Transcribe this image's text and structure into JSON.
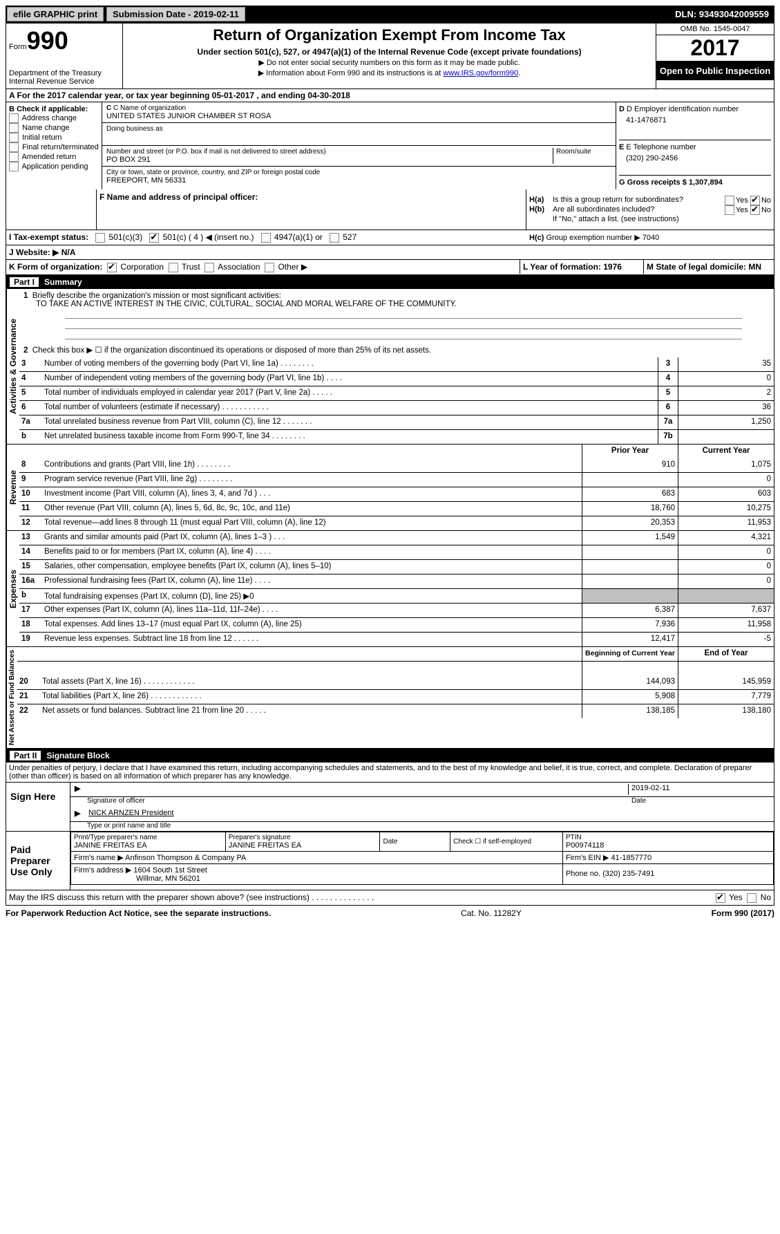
{
  "topbar": {
    "efile": "efile GRAPHIC print",
    "submission_label": "Submission Date - 2019-02-11",
    "dln": "DLN: 93493042009559"
  },
  "header": {
    "form_label": "Form",
    "form_number": "990",
    "dept1": "Department of the Treasury",
    "dept2": "Internal Revenue Service",
    "title": "Return of Organization Exempt From Income Tax",
    "subtitle": "Under section 501(c), 527, or 4947(a)(1) of the Internal Revenue Code (except private foundations)",
    "note1": "▶ Do not enter social security numbers on this form as it may be made public.",
    "note2_pre": "▶ Information about Form 990 and its instructions is at ",
    "note2_link": "www.IRS.gov/form990",
    "omb": "OMB No. 1545-0047",
    "year": "2017",
    "inspection": "Open to Public Inspection"
  },
  "sectionA": "A  For the 2017 calendar year, or tax year beginning 05-01-2017   , and ending 04-30-2018",
  "boxB": {
    "label": "B Check if applicable:",
    "opts": [
      "Address change",
      "Name change",
      "Initial return",
      "Final return/terminated",
      "Amended return",
      "Application pending"
    ]
  },
  "boxC": {
    "name_label": "C Name of organization",
    "name": "UNITED STATES JUNIOR CHAMBER ST ROSA",
    "dba_label": "Doing business as",
    "street_label": "Number and street (or P.O. box if mail is not delivered to street address)",
    "room_label": "Room/suite",
    "street": "PO BOX 291",
    "city_label": "City or town, state or province, country, and ZIP or foreign postal code",
    "city": "FREEPORT, MN  56331"
  },
  "boxD": {
    "label": "D Employer identification number",
    "value": "41-1476871"
  },
  "boxE": {
    "label": "E Telephone number",
    "value": "(320) 290-2456"
  },
  "boxG": {
    "label": "G Gross receipts $ 1,307,894"
  },
  "boxF": "F Name and address of principal officer:",
  "boxH": {
    "a": "Is this a group return for subordinates?",
    "b": "Are all subordinates included?",
    "b_note": "If \"No,\" attach a list. (see instructions)",
    "c": "Group exemption number ▶   7040",
    "yes": "Yes",
    "no": "No"
  },
  "rowI": {
    "label": "I  Tax-exempt status:",
    "o1": "501(c)(3)",
    "o2": "501(c) ( 4 ) ◀ (insert no.)",
    "o3": "4947(a)(1) or",
    "o4": "527"
  },
  "rowJ": "J  Website: ▶  N/A",
  "rowK": {
    "label": "K Form of organization:",
    "o1": "Corporation",
    "o2": "Trust",
    "o3": "Association",
    "o4": "Other ▶"
  },
  "rowL": "L Year of formation: 1976",
  "rowM": "M State of legal domicile: MN",
  "part1": {
    "num": "Part I",
    "title": "Summary"
  },
  "governance": {
    "side": "Activities & Governance",
    "l1_label": "Briefly describe the organization's mission or most significant activities:",
    "l1_text": "TO TAKE AN ACTIVE INTEREST IN THE CIVIC, CULTURAL, SOCIAL AND MORAL WELFARE OF THE COMMUNITY.",
    "l2": "Check this box ▶ ☐  if the organization discontinued its operations or disposed of more than 25% of its net assets.",
    "rows": [
      {
        "n": "3",
        "label": "Number of voting members of the governing body (Part VI, line 1a)   .    .    .    .    .    .    .    .",
        "box": "3",
        "val": "35"
      },
      {
        "n": "4",
        "label": "Number of independent voting members of the governing body (Part VI, line 1b)    .    .    .    .",
        "box": "4",
        "val": "0"
      },
      {
        "n": "5",
        "label": "Total number of individuals employed in calendar year 2017 (Part V, line 2a)    .    .    .    .    .",
        "box": "5",
        "val": "2"
      },
      {
        "n": "6",
        "label": "Total number of volunteers (estimate if necessary)   .    .    .    .    .    .    .    .    .    .    .",
        "box": "6",
        "val": "36"
      },
      {
        "n": "7a",
        "label": "Total unrelated business revenue from Part VIII, column (C), line 12   .    .    .    .    .    .    .",
        "box": "7a",
        "val": "1,250"
      },
      {
        "n": "b",
        "label": "Net unrelated business taxable income from Form 990-T, line 34   .    .    .    .    .    .    .    .",
        "box": "7b",
        "val": ""
      }
    ]
  },
  "revenue": {
    "side": "Revenue",
    "header_prior": "Prior Year",
    "header_curr": "Current Year",
    "rows": [
      {
        "n": "8",
        "label": "Contributions and grants (Part VIII, line 1h)   .    .    .    .    .    .    .    .",
        "p": "910",
        "c": "1,075"
      },
      {
        "n": "9",
        "label": "Program service revenue (Part VIII, line 2g)   .    .    .    .    .    .    .    .",
        "p": "",
        "c": "0"
      },
      {
        "n": "10",
        "label": "Investment income (Part VIII, column (A), lines 3, 4, and 7d )   .    .    .",
        "p": "683",
        "c": "603"
      },
      {
        "n": "11",
        "label": "Other revenue (Part VIII, column (A), lines 5, 6d, 8c, 9c, 10c, and 11e)",
        "p": "18,760",
        "c": "10,275"
      },
      {
        "n": "12",
        "label": "Total revenue—add lines 8 through 11 (must equal Part VIII, column (A), line 12)",
        "p": "20,353",
        "c": "11,953"
      }
    ]
  },
  "expenses": {
    "side": "Expenses",
    "rows": [
      {
        "n": "13",
        "label": "Grants and similar amounts paid (Part IX, column (A), lines 1–3 )   .    .    .",
        "p": "1,549",
        "c": "4,321"
      },
      {
        "n": "14",
        "label": "Benefits paid to or for members (Part IX, column (A), line 4)   .    .    .    .",
        "p": "",
        "c": "0"
      },
      {
        "n": "15",
        "label": "Salaries, other compensation, employee benefits (Part IX, column (A), lines 5–10)",
        "p": "",
        "c": "0"
      },
      {
        "n": "16a",
        "label": "Professional fundraising fees (Part IX, column (A), line 11e)   .    .    .    .",
        "p": "",
        "c": "0"
      },
      {
        "n": "b",
        "label": "Total fundraising expenses (Part IX, column (D), line 25) ▶0",
        "p": "grey",
        "c": "grey"
      },
      {
        "n": "17",
        "label": "Other expenses (Part IX, column (A), lines 11a–11d, 11f–24e)   .    .    .    .",
        "p": "6,387",
        "c": "7,637"
      },
      {
        "n": "18",
        "label": "Total expenses. Add lines 13–17 (must equal Part IX, column (A), line 25)",
        "p": "7,936",
        "c": "11,958"
      },
      {
        "n": "19",
        "label": "Revenue less expenses. Subtract line 18 from line 12   .    .    .    .    .    .",
        "p": "12,417",
        "c": "-5"
      }
    ]
  },
  "netassets": {
    "side": "Net Assets or Fund Balances",
    "header_prior": "Beginning of Current Year",
    "header_curr": "End of Year",
    "rows": [
      {
        "n": "20",
        "label": "Total assets (Part X, line 16)   .    .    .    .    .    .    .    .    .    .    .    .",
        "p": "144,093",
        "c": "145,959"
      },
      {
        "n": "21",
        "label": "Total liabilities (Part X, line 26)   .    .    .    .    .    .    .    .    .    .    .    .",
        "p": "5,908",
        "c": "7,779"
      },
      {
        "n": "22",
        "label": "Net assets or fund balances. Subtract line 21 from line 20 .    .    .    .    .",
        "p": "138,185",
        "c": "138,180"
      }
    ]
  },
  "part2": {
    "num": "Part II",
    "title": "Signature Block"
  },
  "perjury": "Under penalties of perjury, I declare that I have examined this return, including accompanying schedules and statements, and to the best of my knowledge and belief, it is true, correct, and complete. Declaration of preparer (other than officer) is based on all information of which preparer has any knowledge.",
  "sign": {
    "left": "Sign Here",
    "date": "2019-02-11",
    "sig_label": "Signature of officer",
    "date_label": "Date",
    "name": "NICK ARNZEN President",
    "name_label": "Type or print name and title"
  },
  "preparer": {
    "left": "Paid Preparer Use Only",
    "h1": "Print/Type preparer's name",
    "v1": "JANINE FREITAS EA",
    "h2": "Preparer's signature",
    "v2": "JANINE FREITAS EA",
    "h3": "Date",
    "h4": "Check ☐ if self-employed",
    "h5": "PTIN",
    "v5": "P00974118",
    "firm_name_l": "Firm's name    ▶",
    "firm_name": "Anfinson Thompson & Company PA",
    "firm_ein_l": "Firm's EIN ▶",
    "firm_ein": "41-1857770",
    "firm_addr_l": "Firm's address ▶",
    "firm_addr1": "1604 South 1st Street",
    "firm_addr2": "Willmar, MN  56201",
    "phone_l": "Phone no.",
    "phone": "(320) 235-7491"
  },
  "discuss": "May the IRS discuss this return with the preparer shown above? (see instructions)   .    .    .    .    .    .    .    .    .    .    .    .    .    .",
  "footer": {
    "left": "For Paperwork Reduction Act Notice, see the separate instructions.",
    "mid": "Cat. No. 11282Y",
    "right": "Form 990 (2017)"
  }
}
